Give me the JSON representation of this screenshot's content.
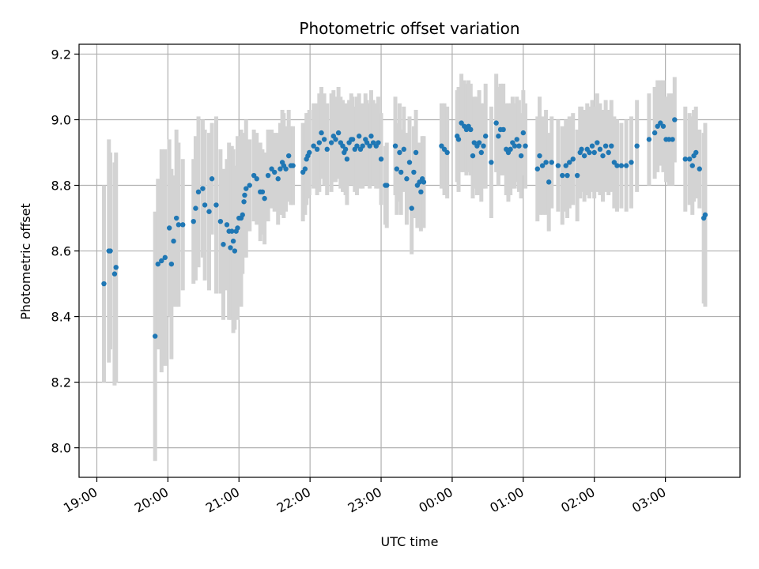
{
  "chart_data": {
    "type": "scatter",
    "title": "Photometric offset variation",
    "xlabel": "UTC time",
    "ylabel": "Photometric offset",
    "x_unit": "hours since 19:00 UTC",
    "xlim": [
      -0.25,
      9.05
    ],
    "ylim": [
      7.91,
      9.23
    ],
    "grid": true,
    "x_ticks": [
      {
        "value": 0,
        "label": "19:00"
      },
      {
        "value": 1,
        "label": "20:00"
      },
      {
        "value": 2,
        "label": "21:00"
      },
      {
        "value": 3,
        "label": "22:00"
      },
      {
        "value": 4,
        "label": "23:00"
      },
      {
        "value": 5,
        "label": "00:00"
      },
      {
        "value": 6,
        "label": "01:00"
      },
      {
        "value": 7,
        "label": "02:00"
      },
      {
        "value": 8,
        "label": "03:00"
      }
    ],
    "y_ticks": [
      {
        "value": 8.0,
        "label": "8.0"
      },
      {
        "value": 8.2,
        "label": "8.2"
      },
      {
        "value": 8.4,
        "label": "8.4"
      },
      {
        "value": 8.6,
        "label": "8.6"
      },
      {
        "value": 8.8,
        "label": "8.8"
      },
      {
        "value": 9.0,
        "label": "9.0"
      },
      {
        "value": 9.2,
        "label": "9.2"
      }
    ],
    "colors": {
      "marker": "#1f77b4",
      "errorbar": "#d3d3d3",
      "grid": "#b0b0b0"
    },
    "series": [
      {
        "points": [
          [
            0.1,
            8.5,
            0.3
          ],
          [
            0.17,
            8.6,
            0.34
          ],
          [
            0.19,
            8.6,
            0.3
          ],
          [
            0.25,
            8.53,
            0.34
          ],
          [
            0.27,
            8.55,
            0.35
          ],
          [
            0.82,
            8.34,
            0.38
          ],
          [
            0.86,
            8.56,
            0.26
          ],
          [
            0.91,
            8.57,
            0.34
          ],
          [
            0.96,
            8.58,
            0.33
          ],
          [
            1.02,
            8.67,
            0.27
          ],
          [
            1.05,
            8.56,
            0.29
          ],
          [
            1.08,
            8.63,
            0.2
          ],
          [
            1.12,
            8.7,
            0.27
          ],
          [
            1.15,
            8.68,
            0.25
          ],
          [
            1.21,
            8.68,
            0.2
          ],
          [
            1.36,
            8.69,
            0.19
          ],
          [
            1.39,
            8.73,
            0.22
          ],
          [
            1.43,
            8.78,
            0.23
          ],
          [
            1.49,
            8.79,
            0.21
          ],
          [
            1.52,
            8.74,
            0.23
          ],
          [
            1.58,
            8.72,
            0.24
          ],
          [
            1.62,
            8.82,
            0.17
          ],
          [
            1.68,
            8.74,
            0.27
          ],
          [
            1.74,
            8.69,
            0.22
          ],
          [
            1.78,
            8.62,
            0.23
          ],
          [
            1.83,
            8.68,
            0.2
          ],
          [
            1.86,
            8.66,
            0.27
          ],
          [
            1.88,
            8.61,
            0.22
          ],
          [
            1.9,
            8.66,
            0.26
          ],
          [
            1.92,
            8.63,
            0.28
          ],
          [
            1.94,
            8.6,
            0.24
          ],
          [
            1.96,
            8.66,
            0.2
          ],
          [
            1.98,
            8.67,
            0.28
          ],
          [
            2.0,
            8.7,
            0.23
          ],
          [
            2.03,
            8.7,
            0.27
          ],
          [
            2.05,
            8.71,
            0.18
          ],
          [
            2.07,
            8.75,
            0.17
          ],
          [
            2.08,
            8.77,
            0.19
          ],
          [
            2.1,
            8.79,
            0.21
          ],
          [
            2.15,
            8.8,
            0.14
          ],
          [
            2.21,
            8.83,
            0.14
          ],
          [
            2.25,
            8.82,
            0.14
          ],
          [
            2.3,
            8.78,
            0.15
          ],
          [
            2.33,
            8.78,
            0.13
          ],
          [
            2.36,
            8.76,
            0.14
          ],
          [
            2.41,
            8.83,
            0.14
          ],
          [
            2.46,
            8.85,
            0.12
          ],
          [
            2.5,
            8.84,
            0.12
          ],
          [
            2.55,
            8.82,
            0.14
          ],
          [
            2.58,
            8.85,
            0.14
          ],
          [
            2.61,
            8.87,
            0.16
          ],
          [
            2.63,
            8.86,
            0.16
          ],
          [
            2.66,
            8.85,
            0.13
          ],
          [
            2.7,
            8.89,
            0.14
          ],
          [
            2.73,
            8.86,
            0.12
          ],
          [
            2.76,
            8.86,
            0.12
          ],
          [
            2.9,
            8.84,
            0.15
          ],
          [
            2.93,
            8.85,
            0.14
          ],
          [
            2.95,
            8.88,
            0.14
          ],
          [
            2.97,
            8.89,
            0.13
          ],
          [
            2.99,
            8.9,
            0.13
          ],
          [
            3.05,
            8.92,
            0.13
          ],
          [
            3.1,
            8.91,
            0.14
          ],
          [
            3.13,
            8.93,
            0.15
          ],
          [
            3.16,
            8.96,
            0.14
          ],
          [
            3.2,
            8.94,
            0.14
          ],
          [
            3.24,
            8.91,
            0.14
          ],
          [
            3.3,
            8.93,
            0.15
          ],
          [
            3.33,
            8.95,
            0.14
          ],
          [
            3.36,
            8.94,
            0.13
          ],
          [
            3.4,
            8.96,
            0.14
          ],
          [
            3.43,
            8.93,
            0.14
          ],
          [
            3.46,
            8.92,
            0.14
          ],
          [
            3.48,
            8.9,
            0.12
          ],
          [
            3.5,
            8.91,
            0.14
          ],
          [
            3.52,
            8.88,
            0.14
          ],
          [
            3.55,
            8.93,
            0.13
          ],
          [
            3.58,
            8.94,
            0.14
          ],
          [
            3.6,
            8.94,
            0.13
          ],
          [
            3.63,
            8.91,
            0.13
          ],
          [
            3.66,
            8.92,
            0.15
          ],
          [
            3.69,
            8.95,
            0.13
          ],
          [
            3.71,
            8.91,
            0.12
          ],
          [
            3.74,
            8.92,
            0.13
          ],
          [
            3.78,
            8.94,
            0.14
          ],
          [
            3.8,
            8.93,
            0.13
          ],
          [
            3.84,
            8.92,
            0.13
          ],
          [
            3.86,
            8.95,
            0.14
          ],
          [
            3.89,
            8.93,
            0.13
          ],
          [
            3.93,
            8.92,
            0.13
          ],
          [
            3.96,
            8.93,
            0.14
          ],
          [
            4.0,
            8.88,
            0.14
          ],
          [
            4.06,
            8.8,
            0.12
          ],
          [
            4.08,
            8.8,
            0.13
          ],
          [
            4.2,
            8.92,
            0.15
          ],
          [
            4.22,
            8.85,
            0.14
          ],
          [
            4.26,
            8.9,
            0.15
          ],
          [
            4.28,
            8.84,
            0.13
          ],
          [
            4.32,
            8.91,
            0.13
          ],
          [
            4.36,
            8.82,
            0.14
          ],
          [
            4.4,
            8.87,
            0.14
          ],
          [
            4.43,
            8.73,
            0.14
          ],
          [
            4.46,
            8.84,
            0.14
          ],
          [
            4.49,
            8.9,
            0.13
          ],
          [
            4.51,
            8.8,
            0.13
          ],
          [
            4.54,
            8.81,
            0.12
          ],
          [
            4.56,
            8.78,
            0.12
          ],
          [
            4.58,
            8.82,
            0.13
          ],
          [
            4.6,
            8.81,
            0.14
          ],
          [
            4.85,
            8.92,
            0.13
          ],
          [
            4.89,
            8.91,
            0.14
          ],
          [
            4.93,
            8.9,
            0.14
          ],
          [
            5.07,
            8.95,
            0.14
          ],
          [
            5.09,
            8.94,
            0.16
          ],
          [
            5.13,
            8.99,
            0.15
          ],
          [
            5.17,
            8.98,
            0.14
          ],
          [
            5.2,
            8.97,
            0.14
          ],
          [
            5.23,
            8.98,
            0.14
          ],
          [
            5.26,
            8.97,
            0.14
          ],
          [
            5.29,
            8.89,
            0.13
          ],
          [
            5.31,
            8.93,
            0.14
          ],
          [
            5.35,
            8.92,
            0.15
          ],
          [
            5.38,
            8.93,
            0.16
          ],
          [
            5.41,
            8.9,
            0.15
          ],
          [
            5.44,
            8.92,
            0.13
          ],
          [
            5.47,
            8.95,
            0.16
          ],
          [
            5.55,
            8.87,
            0.17
          ],
          [
            5.62,
            8.99,
            0.15
          ],
          [
            5.65,
            8.95,
            0.15
          ],
          [
            5.68,
            8.97,
            0.14
          ],
          [
            5.72,
            8.97,
            0.14
          ],
          [
            5.76,
            8.91,
            0.14
          ],
          [
            5.79,
            8.9,
            0.15
          ],
          [
            5.82,
            8.91,
            0.14
          ],
          [
            5.85,
            8.93,
            0.14
          ],
          [
            5.88,
            8.92,
            0.13
          ],
          [
            5.91,
            8.94,
            0.13
          ],
          [
            5.94,
            8.92,
            0.14
          ],
          [
            5.97,
            8.89,
            0.13
          ],
          [
            6.0,
            8.96,
            0.13
          ],
          [
            6.03,
            8.92,
            0.13
          ],
          [
            6.2,
            8.85,
            0.16
          ],
          [
            6.23,
            8.89,
            0.18
          ],
          [
            6.27,
            8.86,
            0.15
          ],
          [
            6.32,
            8.87,
            0.16
          ],
          [
            6.36,
            8.81,
            0.15
          ],
          [
            6.4,
            8.87,
            0.14
          ],
          [
            6.49,
            8.86,
            0.14
          ],
          [
            6.55,
            8.83,
            0.15
          ],
          [
            6.6,
            8.86,
            0.14
          ],
          [
            6.62,
            8.83,
            0.13
          ],
          [
            6.65,
            8.87,
            0.14
          ],
          [
            6.7,
            8.88,
            0.14
          ],
          [
            6.76,
            8.83,
            0.14
          ],
          [
            6.8,
            8.9,
            0.14
          ],
          [
            6.82,
            8.91,
            0.13
          ],
          [
            6.86,
            8.89,
            0.14
          ],
          [
            6.9,
            8.91,
            0.14
          ],
          [
            6.93,
            8.9,
            0.14
          ],
          [
            6.97,
            8.92,
            0.14
          ],
          [
            7.0,
            8.9,
            0.14
          ],
          [
            7.04,
            8.93,
            0.15
          ],
          [
            7.08,
            8.91,
            0.14
          ],
          [
            7.12,
            8.89,
            0.14
          ],
          [
            7.16,
            8.92,
            0.14
          ],
          [
            7.2,
            8.9,
            0.13
          ],
          [
            7.24,
            8.92,
            0.14
          ],
          [
            7.28,
            8.87,
            0.14
          ],
          [
            7.32,
            8.86,
            0.14
          ],
          [
            7.38,
            8.86,
            0.13
          ],
          [
            7.45,
            8.86,
            0.14
          ],
          [
            7.52,
            8.87,
            0.14
          ],
          [
            7.6,
            8.92,
            0.14
          ],
          [
            7.77,
            8.94,
            0.14
          ],
          [
            7.85,
            8.96,
            0.14
          ],
          [
            7.89,
            8.98,
            0.14
          ],
          [
            7.93,
            8.99,
            0.13
          ],
          [
            7.97,
            8.98,
            0.14
          ],
          [
            8.01,
            8.94,
            0.13
          ],
          [
            8.05,
            8.94,
            0.14
          ],
          [
            8.1,
            8.94,
            0.14
          ],
          [
            8.13,
            9.0,
            0.13
          ],
          [
            8.28,
            8.88,
            0.16
          ],
          [
            8.34,
            8.88,
            0.14
          ],
          [
            8.38,
            8.86,
            0.15
          ],
          [
            8.4,
            8.89,
            0.14
          ],
          [
            8.43,
            8.9,
            0.14
          ],
          [
            8.48,
            8.85,
            0.12
          ],
          [
            8.54,
            8.7,
            0.26
          ],
          [
            8.56,
            8.71,
            0.28
          ]
        ]
      }
    ]
  }
}
